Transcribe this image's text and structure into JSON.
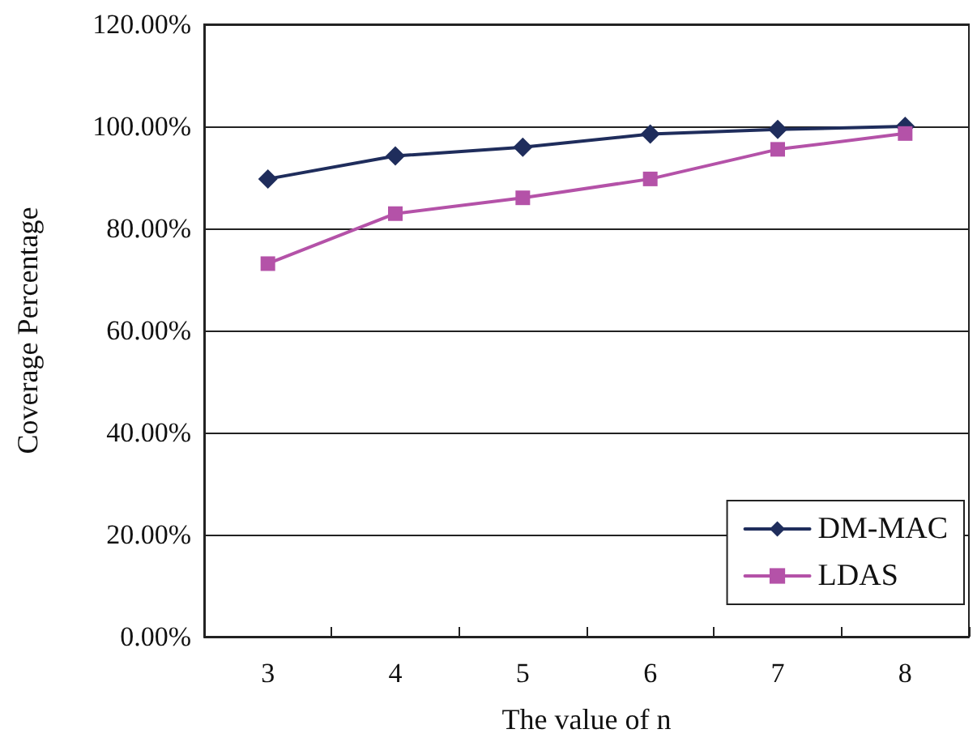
{
  "chart_data": {
    "type": "line",
    "xlabel": "The value of n",
    "ylabel": "Coverage Percentage",
    "categories": [
      "3",
      "4",
      "5",
      "6",
      "7",
      "8"
    ],
    "series": [
      {
        "name": "DM-MAC",
        "color": "#1f2d5c",
        "marker": "diamond",
        "values": [
          89.7,
          94.2,
          95.9,
          98.5,
          99.4,
          100
        ]
      },
      {
        "name": "LDAS",
        "color": "#b452a8",
        "marker": "square",
        "values": [
          73.1,
          82.9,
          86.0,
          89.7,
          95.5,
          98.6
        ]
      }
    ],
    "ylim": [
      0,
      120
    ],
    "yticks": [
      {
        "value": 0,
        "label": "0.00%"
      },
      {
        "value": 20,
        "label": "20.00%"
      },
      {
        "value": 40,
        "label": "40.00%"
      },
      {
        "value": 60,
        "label": "60.00%"
      },
      {
        "value": 80,
        "label": "80.00%"
      },
      {
        "value": 100,
        "label": "100.00%"
      },
      {
        "value": 120,
        "label": "120.00%"
      }
    ],
    "grid": "y",
    "legend": "bottom right",
    "line_style": "solid"
  }
}
